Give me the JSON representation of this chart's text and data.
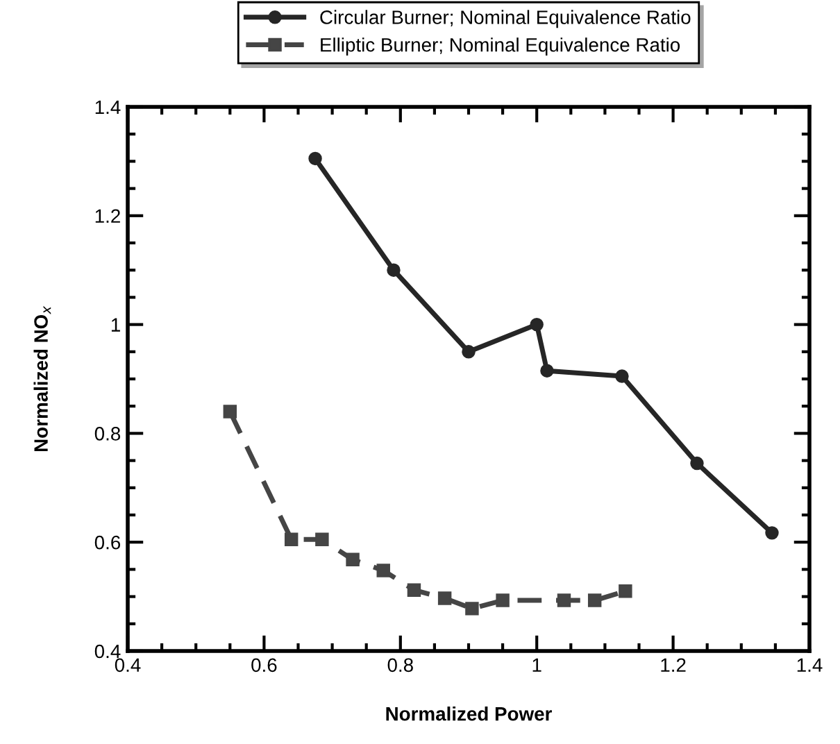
{
  "chart_data": {
    "type": "line",
    "xlabel": "Normalized Power",
    "ylabel": "Normalized NO$_{x}$",
    "xlim": [
      0.4,
      1.4
    ],
    "ylim": [
      0.4,
      1.4
    ],
    "xticks": [
      0.4,
      0.6,
      0.8,
      1,
      1.2,
      1.4
    ],
    "yticks": [
      0.4,
      0.6,
      0.8,
      1,
      1.2,
      1.4
    ],
    "grid": false,
    "legend": "top",
    "series": [
      {
        "name": "Circular Burner; Nominal Equivalence Ratio",
        "color": "#262626",
        "marker": "circle",
        "line_style": "solid",
        "x": [
          0.675,
          0.79,
          0.9,
          1.0,
          1.015,
          1.125,
          1.235,
          1.345
        ],
        "values": [
          1.305,
          1.1,
          0.95,
          1.0,
          0.915,
          0.905,
          0.745,
          0.617
        ]
      },
      {
        "name": "Elliptic Burner; Nominal Equivalence Ratio",
        "color": "#454545",
        "marker": "square",
        "line_style": "dashed",
        "x": [
          0.55,
          0.64,
          0.685,
          0.73,
          0.775,
          0.82,
          0.865,
          0.905,
          0.95,
          1.04,
          1.085,
          1.13
        ],
        "values": [
          0.84,
          0.605,
          0.605,
          0.568,
          0.548,
          0.512,
          0.497,
          0.478,
          0.493,
          0.493,
          0.493,
          0.51
        ]
      }
    ]
  }
}
